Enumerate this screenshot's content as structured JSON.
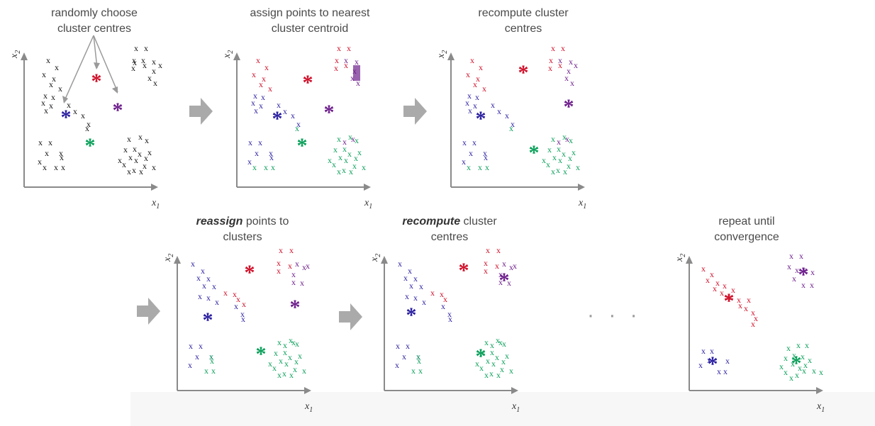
{
  "captions": {
    "p1": {
      "line1": "randomly choose",
      "line2": "cluster centres"
    },
    "p2": {
      "line1": "assign points to nearest",
      "line2": "cluster centroid"
    },
    "p3": {
      "line1": "recompute cluster",
      "line2": "centres"
    },
    "p4": {
      "emph": "reassign",
      "rest": " points to",
      "line2": "clusters"
    },
    "p5": {
      "emph": "recompute",
      "rest": " cluster",
      "line2": "centres"
    },
    "p6": {
      "line1": "repeat until",
      "line2": "convergence"
    }
  },
  "axis": {
    "x_label": "x",
    "x_sub": "1",
    "y_label": "x",
    "y_sub": "2"
  },
  "ellipsis": "· · ·",
  "colors": {
    "red": "#d0102a",
    "blue": "#2a1fa0",
    "purple": "#6e1f8c",
    "green": "#0aa05a",
    "black": "#111111",
    "axis": "#8a8a8a",
    "arrow": "#aaaaaa"
  },
  "icons": {
    "point": "cross-marker-icon",
    "centroid": "asterisk-icon",
    "step": "right-arrow-icon"
  }
}
